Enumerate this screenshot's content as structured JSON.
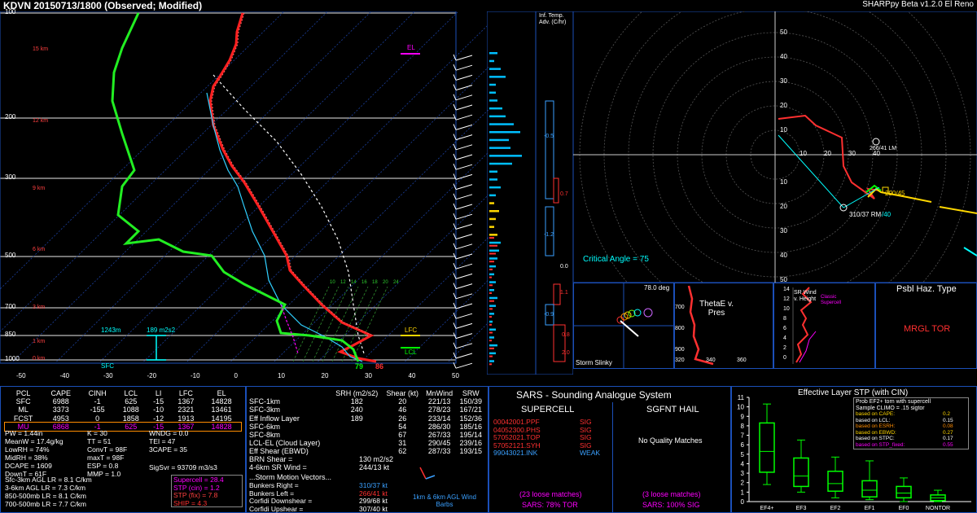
{
  "header": {
    "title": "KDVN   20150713/1800  (Observed; Modified)",
    "version": "SHARPpy Beta v1.2.0 El Reno"
  },
  "skewt": {
    "pressure_ticks": [
      "100",
      "200",
      "300",
      "500",
      "700",
      "850",
      "1000"
    ],
    "temp_ticks": [
      "-50",
      "-40",
      "-30",
      "-20",
      "-10",
      "0",
      "10",
      "20",
      "30",
      "40",
      "50"
    ],
    "height_labels": [
      "15 km",
      "12 km",
      "9 km",
      "6 km",
      "3 km",
      "1 km",
      "0 km"
    ],
    "el_label": "EL",
    "lfc_label": "LFC",
    "lcl_label": "LCL",
    "sfc_label": "SFC",
    "dewpoint_sfc": "79",
    "temp_sfc": "86",
    "eff_inflow_bottom": "1243m",
    "eff_srh": "189 m2s2",
    "mixratio_labels": [
      "10",
      "12",
      "14",
      "16",
      "18",
      "20",
      "24"
    ]
  },
  "inf_temp": {
    "title": "Inf. Temp. Adv. (C/hr)",
    "values": [
      "-0.5",
      "0.7",
      "-1.2",
      "0.0",
      "1.1",
      "-0.9",
      "0.8",
      "2.0"
    ]
  },
  "hodograph": {
    "rings_labels": [
      "50",
      "40",
      "30",
      "20",
      "10",
      "10",
      "20",
      "30",
      "40",
      "50"
    ],
    "x_labels": [
      "10",
      "20",
      "30",
      "40"
    ],
    "lm_label": "266/41 LM",
    "rm_label": "310/37 RM",
    "mean_label": "290/45",
    "srw_label": "/40",
    "critical_angle": "Critical Angle = 75"
  },
  "inset_slinky": {
    "angle": "78.0 deg",
    "title": "Storm Slinky"
  },
  "inset_thetae": {
    "title": "ThetaE v. Pres",
    "x_ticks": [
      "320",
      "340",
      "360"
    ],
    "y_ticks": [
      "700",
      "800",
      "900"
    ]
  },
  "inset_srw": {
    "title": "SR Wind v. Height",
    "note": "Classic Supercell",
    "ticks": [
      "14",
      "12",
      "10",
      "8",
      "6",
      "4",
      "2",
      "0"
    ]
  },
  "hazard": {
    "title": "Psbl Haz. Type",
    "value": "MRGL TOR"
  },
  "parcels": {
    "headers": [
      "PCL",
      "CAPE",
      "CINH",
      "LCL",
      "LI",
      "LFC",
      "EL"
    ],
    "rows": [
      [
        "SFC",
        "6988",
        "-1",
        "625",
        "-15",
        "1367",
        "14828"
      ],
      [
        "ML",
        "3373",
        "-155",
        "1088",
        "-10",
        "2321",
        "13461"
      ],
      [
        "FCST",
        "4953",
        "0",
        "1858",
        "-12",
        "1913",
        "14195"
      ],
      [
        "MU",
        "6868",
        "-1",
        "625",
        "-15",
        "1367",
        "14828"
      ]
    ]
  },
  "indices": {
    "col1": [
      "PW = 1.44in",
      "MeanW = 17.4g/kg",
      "LowRH = 74%",
      "MidRH = 38%",
      "DCAPE = 1609",
      "DownT = 61F"
    ],
    "col2": [
      "K = 30",
      "TT = 51",
      "ConvT = 98F",
      "maxT = 98F",
      "ESP = 0.8",
      "MMP = 1.0"
    ],
    "col3": [
      "WNDG = 0.0",
      "TEI = 47",
      "3CAPE = 35"
    ],
    "sigsvr": "SigSvr = 93709 m3/s3",
    "lapse": [
      "Sfc-3km AGL LR = 8.1 C/km",
      "3-6km AGL LR = 7.3 C/km",
      "850-500mb LR = 8.1 C/km",
      "700-500mb LR = 7.7 C/km"
    ],
    "composites": [
      {
        "text": "Supercell = 28.4",
        "color": "#ff00ff"
      },
      {
        "text": "STP (cin) = 1.2",
        "color": "#ff00ff"
      },
      {
        "text": "STP (fix) = 7.8",
        "color": "#ff4040"
      },
      {
        "text": "SHIP = 4.3",
        "color": "#ff3030"
      }
    ]
  },
  "kinematics": {
    "headers": [
      "SRH (m2/s2)",
      "Shear (kt)",
      "MnWind",
      "SRW"
    ],
    "rows": [
      [
        "SFC-1km",
        "182",
        "20",
        "221/13",
        "150/39"
      ],
      [
        "SFC-3km",
        "240",
        "46",
        "278/23",
        "167/21"
      ],
      [
        "Eff Inflow Layer",
        "189",
        "26",
        "233/14",
        "152/36"
      ],
      [
        "",
        "",
        " ",
        "",
        ""
      ],
      [
        "SFC-6km",
        "",
        "54",
        "286/30",
        "185/16"
      ],
      [
        "SFC-8km",
        "",
        "67",
        "267/33",
        "195/14"
      ],
      [
        "LCL-EL (Cloud Layer)",
        "",
        "31",
        "290/45",
        "239/16"
      ],
      [
        "Eff Shear (EBWD)",
        "",
        "62",
        "287/33",
        "193/15"
      ]
    ],
    "brn_shear": "BRN Shear =",
    "brn_value": "130 m2/s2",
    "sr_wind": "4-6km SR Wind =",
    "sr_value": "244/13 kt",
    "motion_title": "...Storm Motion Vectors...",
    "motion": [
      {
        "label": "Bunkers Right =",
        "value": "310/37 kt",
        "color": "#3aa0ff"
      },
      {
        "label": "Bunkers Left =",
        "value": "266/41 kt",
        "color": "#ff3030"
      },
      {
        "label": "Corfidi Downshear =",
        "value": "299/68 kt",
        "color": "#ffffff"
      },
      {
        "label": "Corfidi Upshear =",
        "value": "307/40 kt",
        "color": "#ffffff"
      }
    ],
    "barb_caption": "1km & 6km AGL Wind Barbs"
  },
  "sars": {
    "title": "SARS - Sounding Analogue System",
    "supercell_title": "SUPERCELL",
    "hail_title": "SGFNT HAIL",
    "matches": [
      {
        "name": "00042001.PPF",
        "type": "SIG",
        "color": "#ff3030"
      },
      {
        "name": "04052300.PHS",
        "type": "SIG",
        "color": "#ff3030"
      },
      {
        "name": "57052021.TOP",
        "type": "SIG",
        "color": "#ff3030"
      },
      {
        "name": "57052121.SYH",
        "type": "SIG",
        "color": "#ff3030"
      },
      {
        "name": "99043021.INK",
        "type": "WEAK",
        "color": "#3aa0ff"
      }
    ],
    "hail_text": "No Quality Matches",
    "supercell_loose": "(23 loose matches)",
    "hail_loose": "(3 loose matches)",
    "supercell_pct": "SARS: 78% TOR",
    "hail_pct": "SARS: 100% SIG"
  },
  "stp": {
    "title": "Effective Layer STP (with CIN)",
    "y_ticks": [
      "11",
      "10",
      "9",
      "8",
      "7",
      "6",
      "5",
      "4",
      "3",
      "2",
      "1",
      "0"
    ],
    "categories": [
      "EF4+",
      "EF3",
      "EF2",
      "EF1",
      "EF0",
      "NONTOR"
    ],
    "legend_title": "Prob EF2+ torn with supercell",
    "legend_sub": "Sample CLIMO = .15 sigtor",
    "legend": [
      {
        "label": "based on CAPE:",
        "value": "0.2",
        "color": "#ffd700"
      },
      {
        "label": "based on LCL:",
        "value": "0.15",
        "color": "#ffffff"
      },
      {
        "label": "based on ESRH:",
        "value": "0.08",
        "color": "#ff8c00"
      },
      {
        "label": "based on EBWD:",
        "value": "0.27",
        "color": "#ffd700"
      },
      {
        "label": "based on STPC:",
        "value": "0.17",
        "color": "#ffffff"
      },
      {
        "label": "based on STP_fixed:",
        "value": "0.55",
        "color": "#ff00ff"
      }
    ]
  },
  "chart_data": {
    "type": "box",
    "title": "Effective Layer STP (with CIN)",
    "categories": [
      "EF4+",
      "EF3",
      "EF2",
      "EF1",
      "EF0",
      "NONTOR"
    ],
    "series": [
      {
        "whisker_low": [
          1.8,
          1.0,
          0.4,
          0.2,
          0.0,
          0.0
        ],
        "q1": [
          3.1,
          1.6,
          1.1,
          0.5,
          0.4,
          0.1
        ],
        "median": [
          5.3,
          2.7,
          1.9,
          1.2,
          0.9,
          0.4
        ],
        "q3": [
          8.3,
          4.6,
          3.2,
          2.2,
          1.6,
          0.7
        ],
        "whisker_high": [
          10.3,
          6.5,
          4.7,
          4.3,
          2.5,
          1.2
        ]
      }
    ],
    "ylim": [
      0,
      11
    ]
  }
}
